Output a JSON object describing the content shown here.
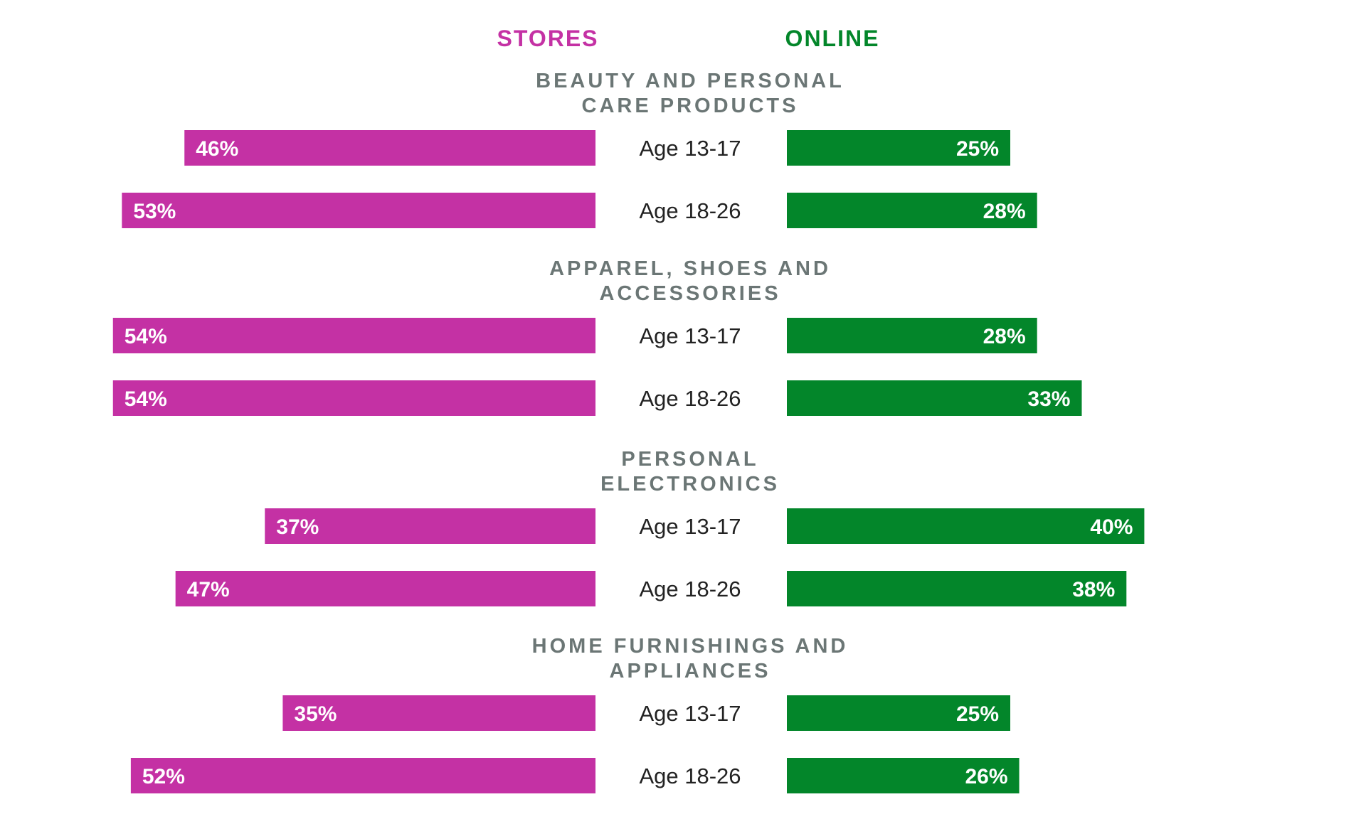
{
  "colors": {
    "stores": "#c431a4",
    "online": "#03862a",
    "category": "#6b7675",
    "age": "#222222"
  },
  "legend": {
    "left": "STORES",
    "right": "ONLINE"
  },
  "chart_data": {
    "type": "bar",
    "orientation": "horizontal-diverging",
    "series_names": [
      "STORES",
      "ONLINE"
    ],
    "value_unit": "%",
    "xlim": [
      0,
      60
    ],
    "grid": false,
    "legend_placement": "top-center",
    "groups": [
      {
        "title_lines": [
          "BEAUTY AND PERSONAL",
          "CARE PRODUCTS"
        ],
        "rows": [
          {
            "age": "Age 13-17",
            "stores": 46,
            "online": 25,
            "stores_label": "46%",
            "online_label": "25%"
          },
          {
            "age": "Age 18-26",
            "stores": 53,
            "online": 28,
            "stores_label": "53%",
            "online_label": "28%"
          }
        ]
      },
      {
        "title_lines": [
          "APPAREL, SHOES AND",
          "ACCESSORIES"
        ],
        "rows": [
          {
            "age": "Age 13-17",
            "stores": 54,
            "online": 28,
            "stores_label": "54%",
            "online_label": "28%"
          },
          {
            "age": "Age 18-26",
            "stores": 54,
            "online": 33,
            "stores_label": "54%",
            "online_label": "33%"
          }
        ]
      },
      {
        "title_lines": [
          "PERSONAL",
          "ELECTRONICS"
        ],
        "rows": [
          {
            "age": "Age 13-17",
            "stores": 37,
            "online": 40,
            "stores_label": "37%",
            "online_label": "40%"
          },
          {
            "age": "Age 18-26",
            "stores": 47,
            "online": 38,
            "stores_label": "47%",
            "online_label": "38%"
          }
        ]
      },
      {
        "title_lines": [
          "HOME FURNISHINGS AND",
          "APPLIANCES"
        ],
        "rows": [
          {
            "age": "Age 13-17",
            "stores": 35,
            "online": 25,
            "stores_label": "35%",
            "online_label": "25%"
          },
          {
            "age": "Age 18-26",
            "stores": 52,
            "online": 26,
            "stores_label": "52%",
            "online_label": "26%"
          }
        ]
      }
    ]
  }
}
